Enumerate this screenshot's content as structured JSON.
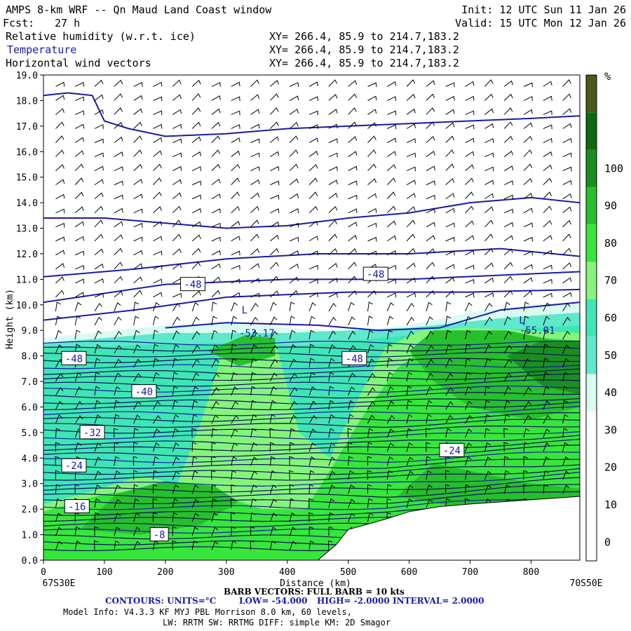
{
  "header": {
    "title": "AMPS 8-km WRF -- Qn Maud Land Coast window",
    "forecast_label": "Fcst:",
    "forecast_value": "27 h",
    "init": "Init: 12 UTC Sun 11 Jan 26",
    "valid": "Valid: 15 UTC Mon 12 Jan 26",
    "fields": [
      {
        "name": "Relative humidity (w.r.t. ice)",
        "xy": "XY= 266.4, 85.9 to 214.7,183.2"
      },
      {
        "name": "Temperature",
        "xy": "XY= 266.4, 85.9 to 214.7,183.2"
      },
      {
        "name": "Horizontal wind vectors",
        "xy": "XY= 266.4, 85.9 to 214.7,183.2"
      }
    ]
  },
  "chart_data": {
    "type": "heatmap",
    "xlabel": "Distance (km)",
    "ylabel": "Height (km)",
    "xlim": [
      0,
      880
    ],
    "ylim": [
      0,
      19
    ],
    "x_ticks": [
      0,
      100,
      200,
      300,
      400,
      500,
      600,
      700,
      800
    ],
    "y_ticks": [
      "0.0",
      "1.0",
      "2.0",
      "3.0",
      "4.0",
      "5.0",
      "6.0",
      "7.0",
      "8.0",
      "9.0",
      "10.0",
      "11.0",
      "12.0",
      "13.0",
      "14.0",
      "15.0",
      "16.0",
      "17.0",
      "18.0",
      "19.0"
    ],
    "x_start_label": "67S30E",
    "x_end_label": "70S50E",
    "colorbar": {
      "unit": "%",
      "tick_labels": [
        "0",
        "10",
        "20",
        "30",
        "40",
        "50",
        "60",
        "70",
        "80",
        "90",
        "100"
      ],
      "levels": [
        0,
        10,
        20,
        30,
        40,
        50,
        60,
        70,
        80,
        90,
        100,
        110
      ],
      "colors": [
        "#ffffff",
        "#ffffff",
        "#ffffff",
        "#ffffff",
        "#d8fbf2",
        "#5ee8cc",
        "#3ee6b4",
        "#84f57a",
        "#37e63a",
        "#27bf2c",
        "#1a8f20",
        "#0d6a10",
        "#4a5a18"
      ]
    },
    "humidity_regions": [
      {
        "level": 40,
        "points": [
          [
            0,
            0
          ],
          [
            0,
            8.7
          ],
          [
            80,
            8.9
          ],
          [
            200,
            9.2
          ],
          [
            300,
            9.3
          ],
          [
            400,
            9.1
          ],
          [
            500,
            8.9
          ],
          [
            600,
            9.2
          ],
          [
            700,
            9.7
          ],
          [
            800,
            10.0
          ],
          [
            880,
            10.1
          ],
          [
            880,
            0
          ]
        ]
      },
      {
        "level": 50,
        "points": [
          [
            0,
            0
          ],
          [
            0,
            8.5
          ],
          [
            200,
            8.9
          ],
          [
            400,
            8.9
          ],
          [
            600,
            9.1
          ],
          [
            760,
            9.5
          ],
          [
            880,
            9.7
          ],
          [
            880,
            0
          ]
        ]
      },
      {
        "level": 60,
        "points": [
          [
            0,
            0
          ],
          [
            0,
            8.3
          ],
          [
            280,
            8.5
          ],
          [
            420,
            8.4
          ],
          [
            600,
            8.8
          ],
          [
            880,
            9.2
          ],
          [
            880,
            0
          ]
        ]
      },
      {
        "level": 70,
        "points": [
          [
            0,
            0
          ],
          [
            0,
            2.2
          ],
          [
            80,
            2.7
          ],
          [
            160,
            3.3
          ],
          [
            220,
            3.0
          ],
          [
            260,
            5.5
          ],
          [
            300,
            8.6
          ],
          [
            380,
            8.6
          ],
          [
            420,
            5.0
          ],
          [
            470,
            4.0
          ],
          [
            520,
            6.5
          ],
          [
            560,
            8.3
          ],
          [
            620,
            9.0
          ],
          [
            700,
            9.1
          ],
          [
            880,
            8.9
          ],
          [
            880,
            0
          ]
        ]
      },
      {
        "level": 80,
        "points": [
          [
            0,
            0
          ],
          [
            0,
            1.9
          ],
          [
            100,
            2.6
          ],
          [
            200,
            2.8
          ],
          [
            280,
            2.6
          ],
          [
            360,
            2.0
          ],
          [
            430,
            2.0
          ],
          [
            470,
            3.5
          ],
          [
            520,
            5.5
          ],
          [
            580,
            7.5
          ],
          [
            640,
            8.6
          ],
          [
            760,
            8.8
          ],
          [
            880,
            8.6
          ],
          [
            880,
            0
          ]
        ]
      },
      {
        "level": 90,
        "points": [
          [
            60,
            1.2
          ],
          [
            120,
            2.6
          ],
          [
            200,
            3.1
          ],
          [
            280,
            2.9
          ],
          [
            320,
            2.3
          ],
          [
            260,
            1.4
          ],
          [
            160,
            1.0
          ]
        ]
      },
      {
        "level": 90,
        "points": [
          [
            270,
            8.2
          ],
          [
            330,
            8.8
          ],
          [
            380,
            8.7
          ],
          [
            380,
            8.0
          ],
          [
            320,
            7.6
          ]
        ]
      },
      {
        "level": 90,
        "points": [
          [
            600,
            8.2
          ],
          [
            640,
            9.0
          ],
          [
            760,
            9.0
          ],
          [
            880,
            8.4
          ],
          [
            880,
            6.0
          ],
          [
            800,
            5.5
          ],
          [
            700,
            6.0
          ],
          [
            640,
            7.0
          ]
        ]
      },
      {
        "level": 90,
        "points": [
          [
            580,
            2.5
          ],
          [
            640,
            3.8
          ],
          [
            720,
            3.4
          ],
          [
            800,
            3.0
          ],
          [
            880,
            2.8
          ],
          [
            880,
            2.0
          ],
          [
            700,
            2.0
          ]
        ]
      },
      {
        "level": 100,
        "points": [
          [
            760,
            8.0
          ],
          [
            820,
            8.6
          ],
          [
            880,
            8.6
          ],
          [
            880,
            6.5
          ],
          [
            820,
            6.8
          ]
        ]
      }
    ],
    "terrain": [
      [
        450,
        0
      ],
      [
        480,
        0.6
      ],
      [
        500,
        1.2
      ],
      [
        530,
        1.4
      ],
      [
        560,
        1.6
      ],
      [
        600,
        1.9
      ],
      [
        650,
        2.1
      ],
      [
        700,
        2.2
      ],
      [
        760,
        2.3
      ],
      [
        820,
        2.4
      ],
      [
        880,
        2.5
      ],
      [
        880,
        0
      ]
    ],
    "temperature_contours": [
      {
        "points": [
          [
            0,
            18.2
          ],
          [
            40,
            18.3
          ],
          [
            80,
            18.2
          ],
          [
            100,
            17.2
          ],
          [
            140,
            16.9
          ],
          [
            200,
            16.6
          ],
          [
            300,
            16.7
          ],
          [
            400,
            16.9
          ],
          [
            500,
            17.0
          ],
          [
            600,
            17.1
          ],
          [
            700,
            17.2
          ],
          [
            800,
            17.3
          ],
          [
            880,
            17.4
          ]
        ]
      },
      {
        "points": [
          [
            0,
            13.4
          ],
          [
            100,
            13.4
          ],
          [
            200,
            13.2
          ],
          [
            300,
            13.0
          ],
          [
            400,
            13.1
          ],
          [
            500,
            13.4
          ],
          [
            600,
            13.6
          ],
          [
            700,
            14.0
          ],
          [
            800,
            14.2
          ],
          [
            880,
            14.0
          ]
        ]
      },
      {
        "points": [
          [
            0,
            11.1
          ],
          [
            150,
            11.4
          ],
          [
            300,
            11.8
          ],
          [
            450,
            12.0
          ],
          [
            600,
            12.0
          ],
          [
            750,
            12.2
          ],
          [
            880,
            11.9
          ]
        ]
      },
      {
        "points": [
          [
            0,
            10.1
          ],
          [
            200,
            10.8
          ],
          [
            400,
            11.0
          ],
          [
            600,
            11.0
          ],
          [
            880,
            11.3
          ]
        ]
      },
      {
        "points": [
          [
            0,
            9.4
          ],
          [
            150,
            9.8
          ],
          [
            300,
            10.3
          ],
          [
            500,
            10.5
          ],
          [
            700,
            10.5
          ],
          [
            880,
            10.6
          ]
        ]
      },
      {
        "points": [
          [
            200,
            9.1
          ],
          [
            300,
            9.3
          ],
          [
            450,
            9.2
          ],
          [
            550,
            9.0
          ],
          [
            650,
            9.1
          ],
          [
            750,
            9.8
          ],
          [
            880,
            10.1
          ]
        ]
      }
    ],
    "contour_labels": [
      {
        "text": "-48",
        "x": 245,
        "y": 10.8
      },
      {
        "text": "-48",
        "x": 545,
        "y": 11.2
      },
      {
        "text": "-48",
        "x": 50,
        "y": 7.9
      },
      {
        "text": "-48",
        "x": 510,
        "y": 7.9
      },
      {
        "text": "-40",
        "x": 165,
        "y": 6.6
      },
      {
        "text": "-32",
        "x": 80,
        "y": 5.0
      },
      {
        "text": "-24",
        "x": 50,
        "y": 3.7
      },
      {
        "text": "-24",
        "x": 670,
        "y": 4.3
      },
      {
        "text": "-16",
        "x": 55,
        "y": 2.1
      },
      {
        "text": "-8",
        "x": 190,
        "y": 1.0
      }
    ],
    "extrema": [
      {
        "text": "L",
        "x": 330,
        "y": 9.8
      },
      {
        "text": "-53.17",
        "x": 350,
        "y": 8.9
      },
      {
        "text": "L",
        "x": 785,
        "y": 9.4
      },
      {
        "text": "-55.01",
        "x": 810,
        "y": 9.0
      }
    ]
  },
  "footer": {
    "barb_line": "BARB VECTORS:  FULL BARB = 10 kts",
    "contours_label": "CONTOURS:  UNITS=°C",
    "low": "LOW= -54.000",
    "high": "HIGH= -2.0000",
    "interval": "INTERVAL=   2.0000",
    "model_info_1": "Model Info: V4.3.3   KF      MYJ PBL  Morrison          8.0 km,  60 levels,",
    "model_info_2": "LW: RRTM SW: RRTMG   DIFF: simple KM: 2D Smagor"
  }
}
